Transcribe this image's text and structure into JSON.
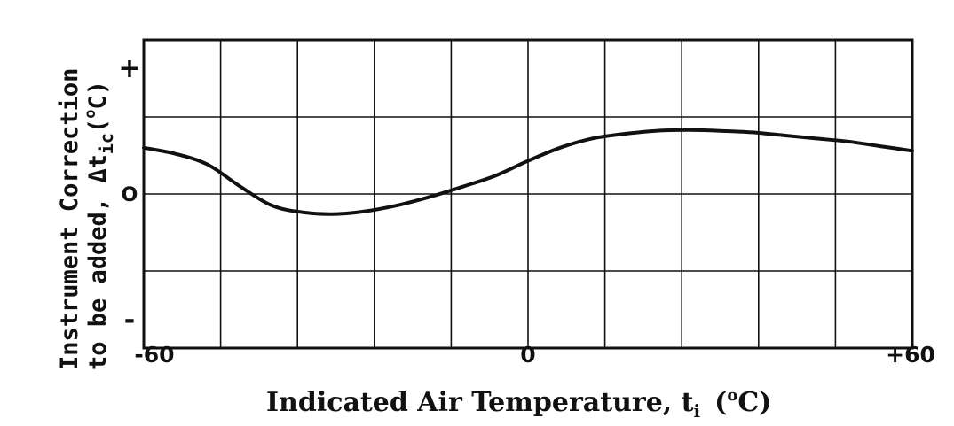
{
  "chart_data": {
    "type": "line",
    "xlabel": {
      "main": "Indicated Air Temperature, t",
      "subscript": "i",
      "unit_open": "(",
      "unit_sup": "o",
      "unit_close": "C)"
    },
    "ylabel": {
      "line1": "Instrument Correction",
      "line2_main": "to be added, Δt",
      "line2_sub": "ic",
      "line2_unit_open": "(",
      "line2_unit_sup": "o",
      "line2_unit_close": "C)"
    },
    "x_ticks": [
      {
        "value": -60,
        "label": "-60"
      },
      {
        "value": 0,
        "label": "0"
      },
      {
        "value": 60,
        "label": "+60"
      }
    ],
    "y_ticks": [
      {
        "value": 1,
        "label": "+"
      },
      {
        "value": 0,
        "label": "O"
      },
      {
        "value": -1,
        "label": "-"
      }
    ],
    "xlim": [
      -60,
      60
    ],
    "ylim": [
      -2,
      2
    ],
    "grid": true,
    "series": [
      {
        "x": [
          -60,
          -55,
          -50,
          -45,
          -40,
          -35,
          -30,
          -25,
          -20,
          -15,
          -10,
          -5,
          0,
          5,
          10,
          15,
          20,
          25,
          30,
          35,
          40,
          45,
          50,
          55,
          60
        ],
        "y": [
          0.6,
          0.52,
          0.38,
          0.1,
          -0.15,
          -0.24,
          -0.26,
          -0.22,
          -0.14,
          -0.03,
          0.1,
          0.24,
          0.43,
          0.6,
          0.72,
          0.78,
          0.82,
          0.83,
          0.82,
          0.8,
          0.76,
          0.72,
          0.68,
          0.62,
          0.56
        ]
      }
    ]
  }
}
